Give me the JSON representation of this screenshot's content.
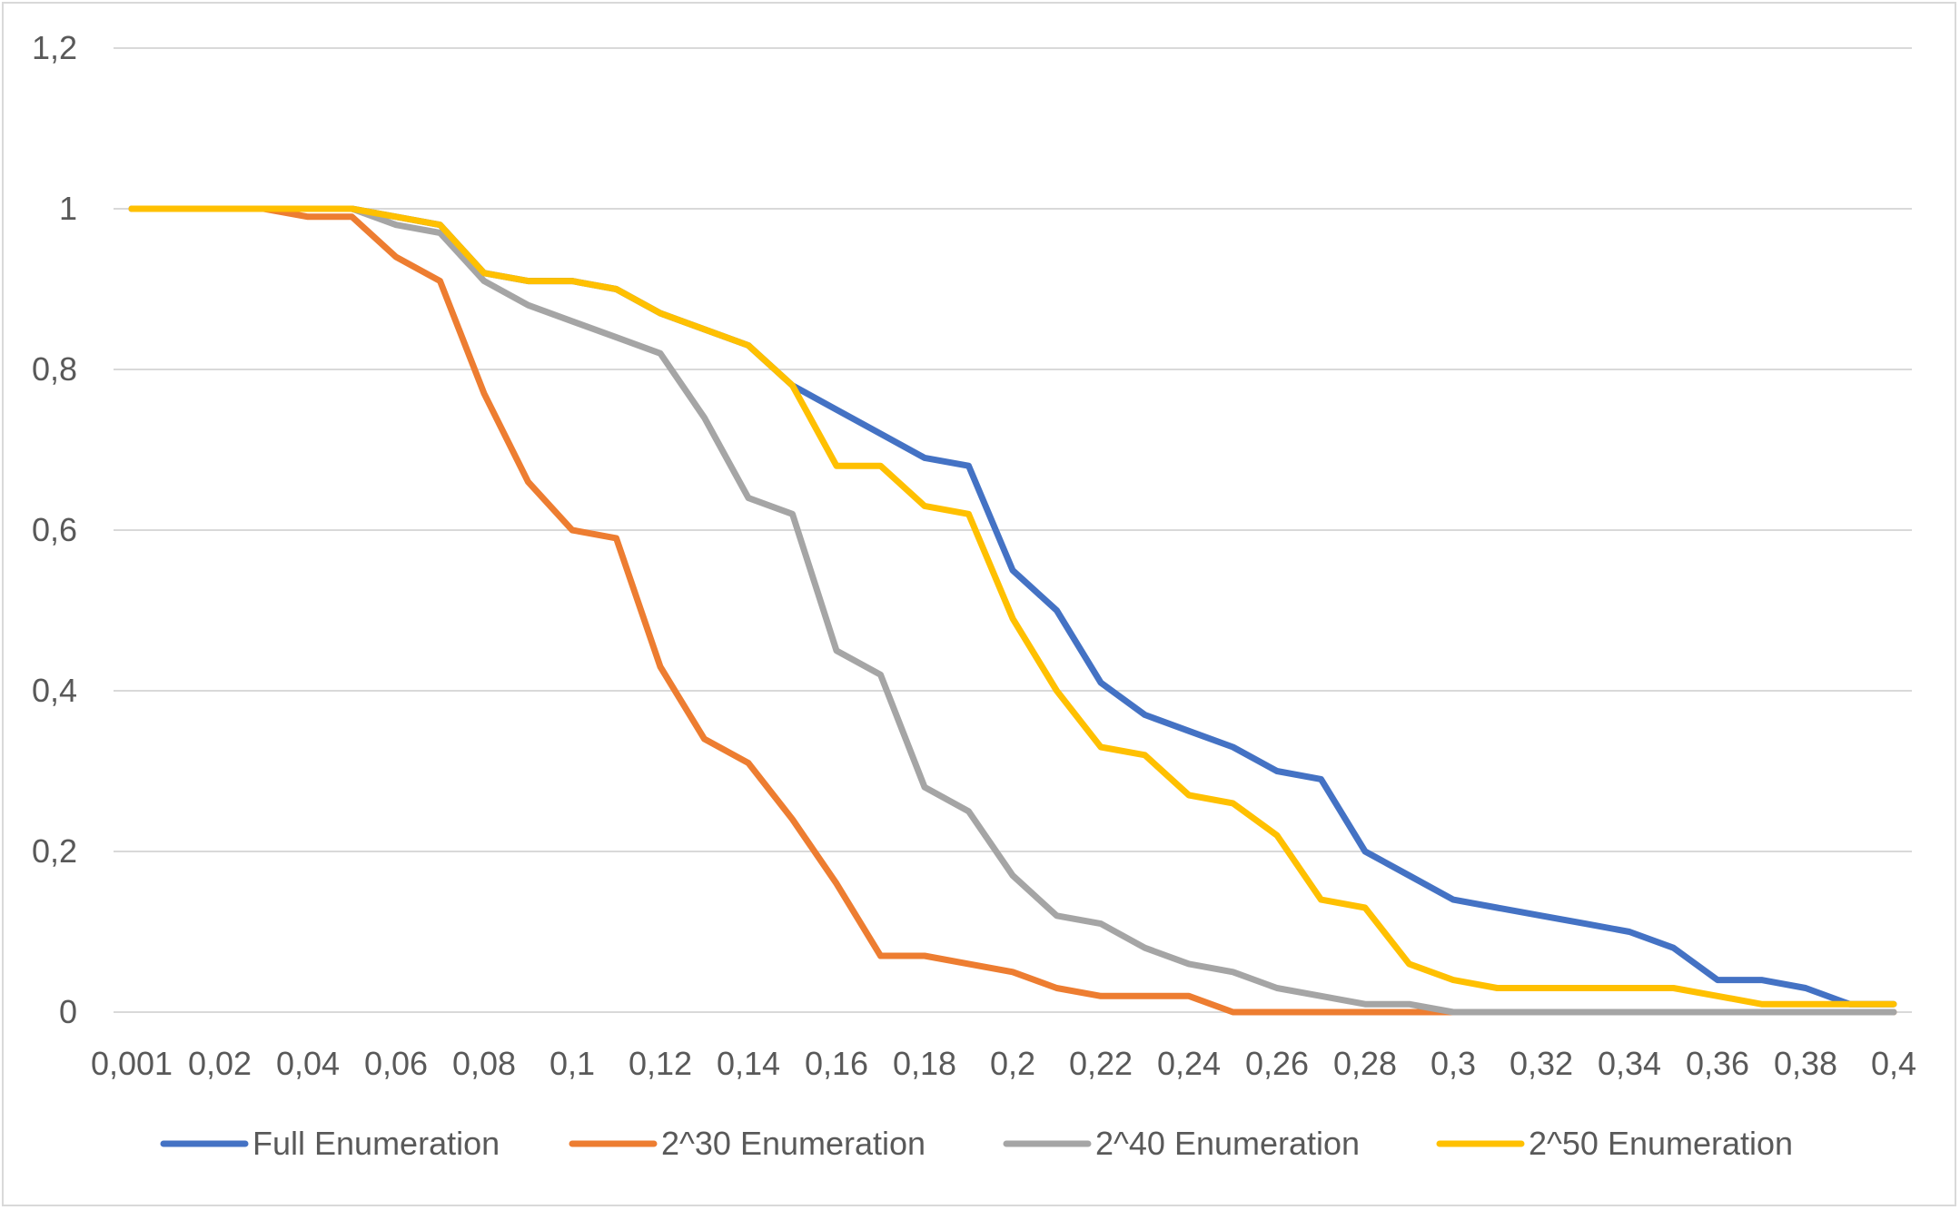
{
  "chart_data": {
    "type": "line",
    "title": "",
    "xlabel": "",
    "ylabel": "",
    "ylim": [
      0,
      1.2
    ],
    "y_ticks": [
      "0",
      "0,2",
      "0,4",
      "0,6",
      "0,8",
      "1",
      "1,2"
    ],
    "y_tick_values": [
      0,
      0.2,
      0.4,
      0.6,
      0.8,
      1.0,
      1.2
    ],
    "x_tick_labels": [
      "0,001",
      "0,02",
      "0,04",
      "0,06",
      "0,08",
      "0,1",
      "0,12",
      "0,14",
      "0,16",
      "0,18",
      "0,2",
      "0,22",
      "0,24",
      "0,26",
      "0,28",
      "0,3",
      "0,32",
      "0,34",
      "0,36",
      "0,38",
      "0,4"
    ],
    "x": [
      0.001,
      0.01,
      0.02,
      0.03,
      0.04,
      0.05,
      0.06,
      0.07,
      0.08,
      0.09,
      0.1,
      0.11,
      0.12,
      0.13,
      0.14,
      0.15,
      0.16,
      0.17,
      0.18,
      0.19,
      0.2,
      0.21,
      0.22,
      0.23,
      0.24,
      0.25,
      0.26,
      0.27,
      0.28,
      0.29,
      0.3,
      0.31,
      0.32,
      0.33,
      0.34,
      0.35,
      0.36,
      0.37,
      0.38,
      0.39,
      0.4
    ],
    "grid": true,
    "legend_position": "bottom",
    "series": [
      {
        "name": "Full Enumeration",
        "color": "#4472c4",
        "values": [
          1,
          1,
          1,
          1,
          1,
          1,
          0.99,
          0.98,
          0.92,
          0.91,
          0.91,
          0.9,
          0.87,
          0.85,
          0.83,
          0.78,
          0.75,
          0.72,
          0.69,
          0.68,
          0.55,
          0.5,
          0.41,
          0.37,
          0.35,
          0.33,
          0.3,
          0.29,
          0.2,
          0.17,
          0.14,
          0.13,
          0.12,
          0.11,
          0.1,
          0.08,
          0.04,
          0.04,
          0.03,
          0.01,
          0.01
        ]
      },
      {
        "name": "2^30 Enumeration",
        "color": "#ed7d31",
        "values": [
          1,
          1,
          1,
          1,
          0.99,
          0.99,
          0.94,
          0.91,
          0.77,
          0.66,
          0.6,
          0.59,
          0.43,
          0.34,
          0.31,
          0.24,
          0.16,
          0.07,
          0.07,
          0.06,
          0.05,
          0.03,
          0.02,
          0.02,
          0.02,
          0,
          0,
          0,
          0,
          0,
          0,
          0,
          0,
          0,
          0,
          0,
          0,
          0,
          0,
          0,
          0
        ]
      },
      {
        "name": "2^40 Enumeration",
        "color": "#a5a5a5",
        "values": [
          1,
          1,
          1,
          1,
          1,
          1,
          0.98,
          0.97,
          0.91,
          0.88,
          0.86,
          0.84,
          0.82,
          0.74,
          0.64,
          0.62,
          0.45,
          0.42,
          0.28,
          0.25,
          0.17,
          0.12,
          0.11,
          0.08,
          0.06,
          0.05,
          0.03,
          0.02,
          0.01,
          0.01,
          0,
          0,
          0,
          0,
          0,
          0,
          0,
          0,
          0,
          0,
          0
        ]
      },
      {
        "name": "2^50 Enumeration",
        "color": "#ffc000",
        "values": [
          1,
          1,
          1,
          1,
          1,
          1,
          0.99,
          0.98,
          0.92,
          0.91,
          0.91,
          0.9,
          0.87,
          0.85,
          0.83,
          0.78,
          0.68,
          0.68,
          0.63,
          0.62,
          0.49,
          0.4,
          0.33,
          0.32,
          0.27,
          0.26,
          0.22,
          0.14,
          0.13,
          0.06,
          0.04,
          0.03,
          0.03,
          0.03,
          0.03,
          0.03,
          0.02,
          0.01,
          0.01,
          0.01,
          0.01
        ]
      }
    ]
  }
}
